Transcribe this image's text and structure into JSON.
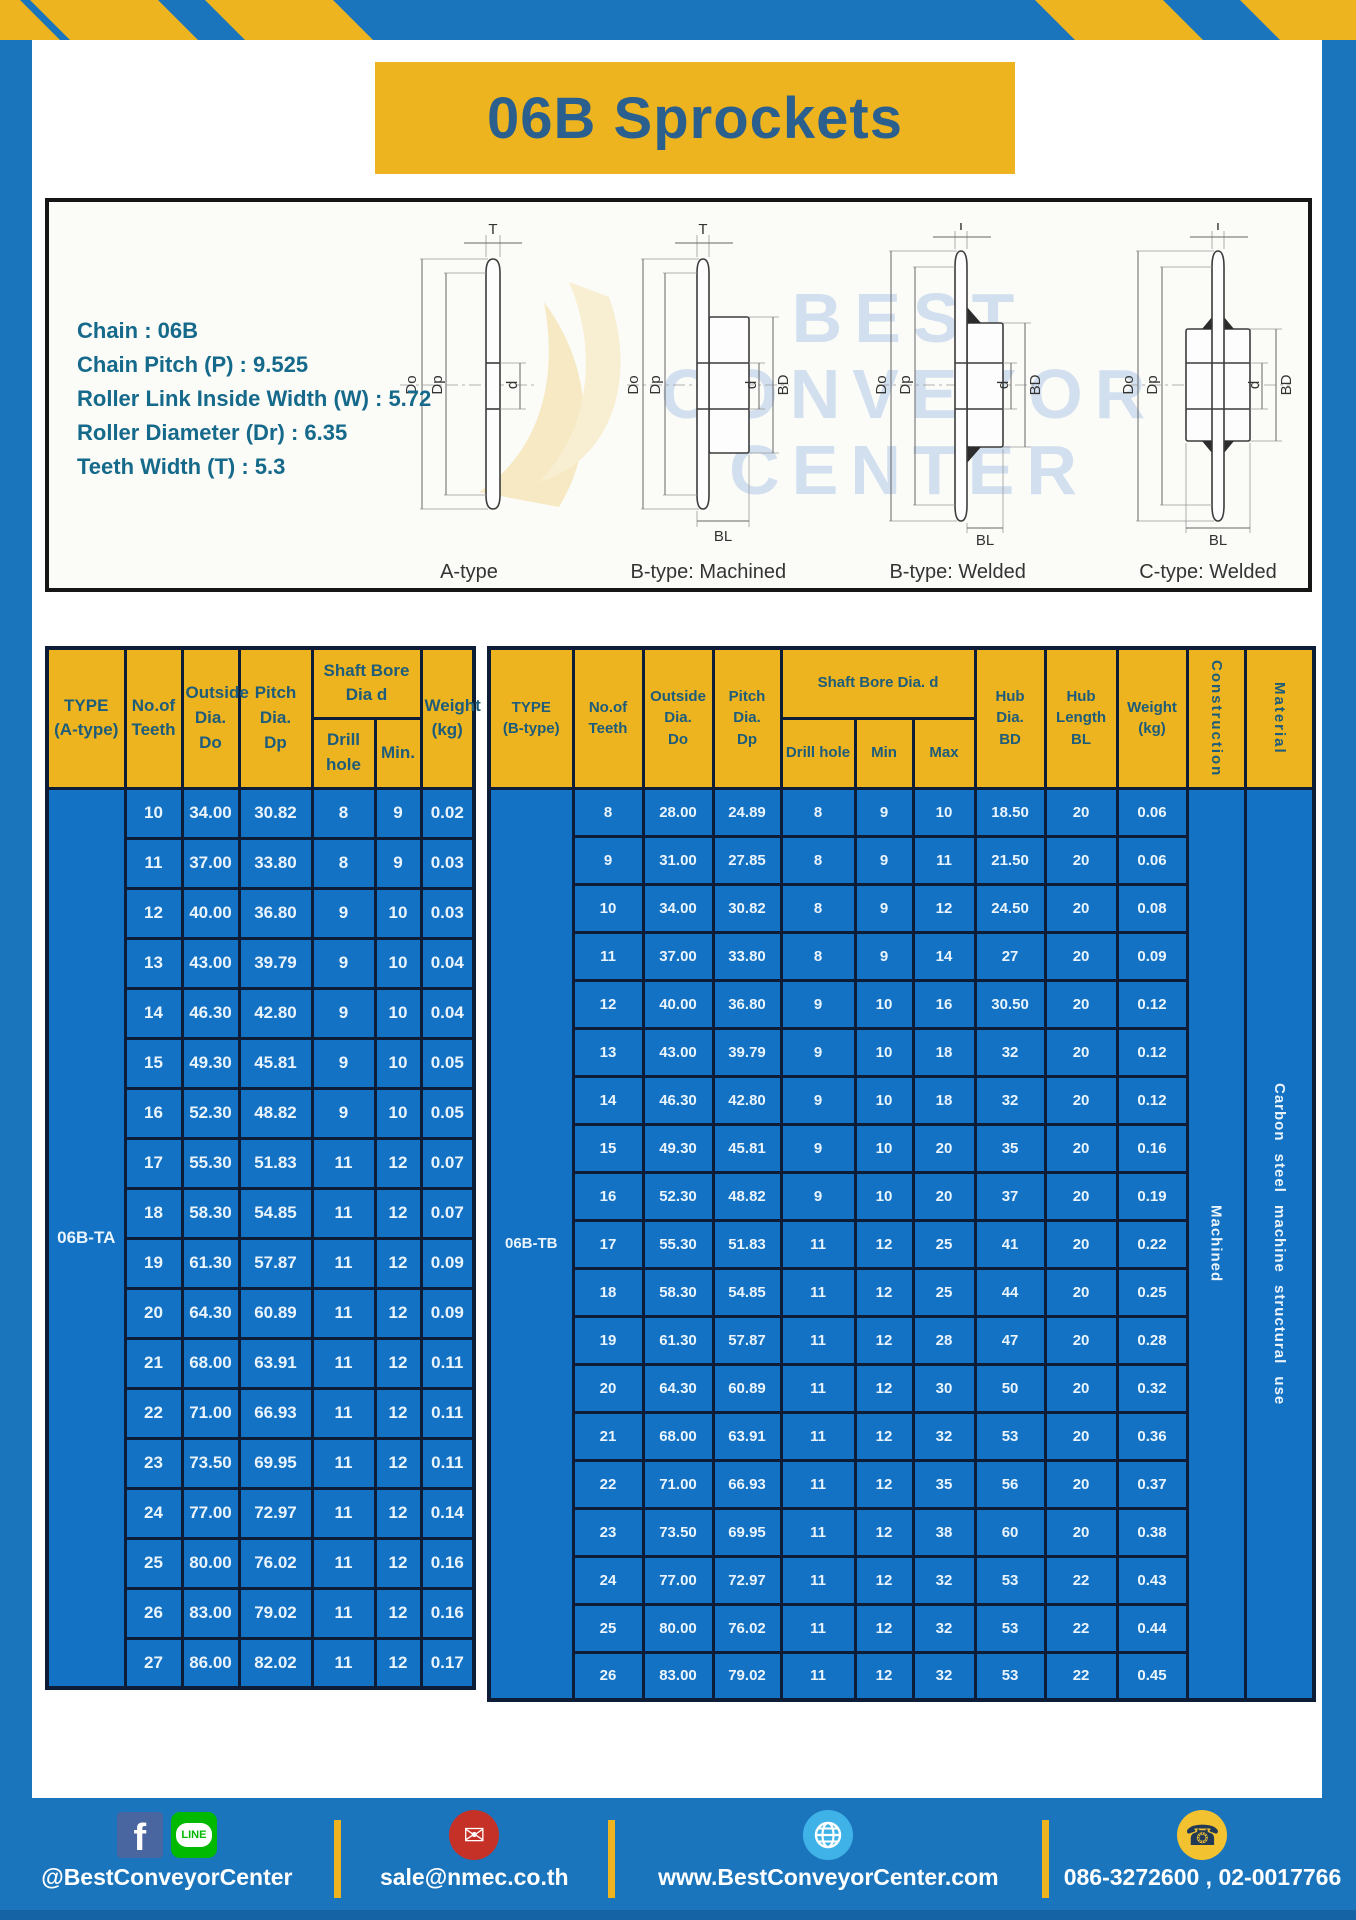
{
  "colors": {
    "brand_blue": "#1b75bd",
    "accent_yellow": "#eeb41f",
    "table_blue": "#1372c4",
    "header_text": "#1d5c7a"
  },
  "header": {
    "title": "06B Sprockets"
  },
  "specs": {
    "lines": [
      "Chain  : 06B",
      "Chain Pitch (P)  :  9.525",
      "Roller Link Inside Width (W)  :  5.72",
      "Roller Diameter (Dr)  : 6.35",
      "Teeth Width (T)  :  5.3"
    ]
  },
  "diagrams": {
    "watermark": {
      "line1": "BEST",
      "line2": "CONVEYOR",
      "line3": "CENTER"
    },
    "dims": {
      "t": "T",
      "outside": "Do",
      "pitch": "Dp",
      "bore": "d",
      "hub_dia": "BD",
      "hub_len": "BL"
    },
    "captions": [
      "A-type",
      "B-type: Machined",
      "B-type: Welded",
      "C-type: Welded"
    ]
  },
  "table_a": {
    "headers": {
      "type": "TYPE\n(A-type)",
      "teeth": "No.of\nTeeth",
      "outside": "Outside\nDia.\nDo",
      "pitch": "Pitch Dia.\nDp",
      "shaft_group": "Shaft Bore Dia d",
      "drill": "Drill hole",
      "min": "Min.",
      "weight": "Weight\n(kg)"
    },
    "type_label": "06B-TA",
    "rows": [
      [
        "10",
        "34.00",
        "30.82",
        "8",
        "9",
        "0.02"
      ],
      [
        "11",
        "37.00",
        "33.80",
        "8",
        "9",
        "0.03"
      ],
      [
        "12",
        "40.00",
        "36.80",
        "9",
        "10",
        "0.03"
      ],
      [
        "13",
        "43.00",
        "39.79",
        "9",
        "10",
        "0.04"
      ],
      [
        "14",
        "46.30",
        "42.80",
        "9",
        "10",
        "0.04"
      ],
      [
        "15",
        "49.30",
        "45.81",
        "9",
        "10",
        "0.05"
      ],
      [
        "16",
        "52.30",
        "48.82",
        "9",
        "10",
        "0.05"
      ],
      [
        "17",
        "55.30",
        "51.83",
        "11",
        "12",
        "0.07"
      ],
      [
        "18",
        "58.30",
        "54.85",
        "11",
        "12",
        "0.07"
      ],
      [
        "19",
        "61.30",
        "57.87",
        "11",
        "12",
        "0.09"
      ],
      [
        "20",
        "64.30",
        "60.89",
        "11",
        "12",
        "0.09"
      ],
      [
        "21",
        "68.00",
        "63.91",
        "11",
        "12",
        "0.11"
      ],
      [
        "22",
        "71.00",
        "66.93",
        "11",
        "12",
        "0.11"
      ],
      [
        "23",
        "73.50",
        "69.95",
        "11",
        "12",
        "0.11"
      ],
      [
        "24",
        "77.00",
        "72.97",
        "11",
        "12",
        "0.14"
      ],
      [
        "25",
        "80.00",
        "76.02",
        "11",
        "12",
        "0.16"
      ],
      [
        "26",
        "83.00",
        "79.02",
        "11",
        "12",
        "0.16"
      ],
      [
        "27",
        "86.00",
        "82.02",
        "11",
        "12",
        "0.17"
      ]
    ]
  },
  "table_b": {
    "headers": {
      "type": "TYPE\n(B-type)",
      "teeth": "No.of\nTeeth",
      "outside": "Outside\nDia.\nDo",
      "pitch": "Pitch\nDia.\nDp",
      "shaft_group": "Shaft Bore Dia.  d",
      "drill": "Drill hole",
      "min": "Min",
      "max": "Max",
      "hub_dia": "Hub\nDia.\nBD",
      "hub_len": "Hub\nLength\nBL",
      "weight": "Weight\n(kg)",
      "construction": "Construction",
      "material": "Material"
    },
    "type_label": "06B-TB",
    "construction_value": "Machined",
    "material_value": "Carbon steel machine structural use",
    "rows": [
      [
        "8",
        "28.00",
        "24.89",
        "8",
        "9",
        "10",
        "18.50",
        "20",
        "0.06"
      ],
      [
        "9",
        "31.00",
        "27.85",
        "8",
        "9",
        "11",
        "21.50",
        "20",
        "0.06"
      ],
      [
        "10",
        "34.00",
        "30.82",
        "8",
        "9",
        "12",
        "24.50",
        "20",
        "0.08"
      ],
      [
        "11",
        "37.00",
        "33.80",
        "8",
        "9",
        "14",
        "27",
        "20",
        "0.09"
      ],
      [
        "12",
        "40.00",
        "36.80",
        "9",
        "10",
        "16",
        "30.50",
        "20",
        "0.12"
      ],
      [
        "13",
        "43.00",
        "39.79",
        "9",
        "10",
        "18",
        "32",
        "20",
        "0.12"
      ],
      [
        "14",
        "46.30",
        "42.80",
        "9",
        "10",
        "18",
        "32",
        "20",
        "0.12"
      ],
      [
        "15",
        "49.30",
        "45.81",
        "9",
        "10",
        "20",
        "35",
        "20",
        "0.16"
      ],
      [
        "16",
        "52.30",
        "48.82",
        "9",
        "10",
        "20",
        "37",
        "20",
        "0.19"
      ],
      [
        "17",
        "55.30",
        "51.83",
        "11",
        "12",
        "25",
        "41",
        "20",
        "0.22"
      ],
      [
        "18",
        "58.30",
        "54.85",
        "11",
        "12",
        "25",
        "44",
        "20",
        "0.25"
      ],
      [
        "19",
        "61.30",
        "57.87",
        "11",
        "12",
        "28",
        "47",
        "20",
        "0.28"
      ],
      [
        "20",
        "64.30",
        "60.89",
        "11",
        "12",
        "30",
        "50",
        "20",
        "0.32"
      ],
      [
        "21",
        "68.00",
        "63.91",
        "11",
        "12",
        "32",
        "53",
        "20",
        "0.36"
      ],
      [
        "22",
        "71.00",
        "66.93",
        "11",
        "12",
        "35",
        "56",
        "20",
        "0.37"
      ],
      [
        "23",
        "73.50",
        "69.95",
        "11",
        "12",
        "38",
        "60",
        "20",
        "0.38"
      ],
      [
        "24",
        "77.00",
        "72.97",
        "11",
        "12",
        "32",
        "53",
        "22",
        "0.43"
      ],
      [
        "25",
        "80.00",
        "76.02",
        "11",
        "12",
        "32",
        "53",
        "22",
        "0.44"
      ],
      [
        "26",
        "83.00",
        "79.02",
        "11",
        "12",
        "32",
        "53",
        "22",
        "0.45"
      ]
    ]
  },
  "footer": {
    "line_bubble_text": "LINE",
    "facebook_letter": "f",
    "social_label": "@BestConveyorCenter",
    "email_label": "sale@nmec.co.th",
    "website_label": "www.BestConveyorCenter.com",
    "phone_label": "086-3272600 , 02-0017766"
  }
}
